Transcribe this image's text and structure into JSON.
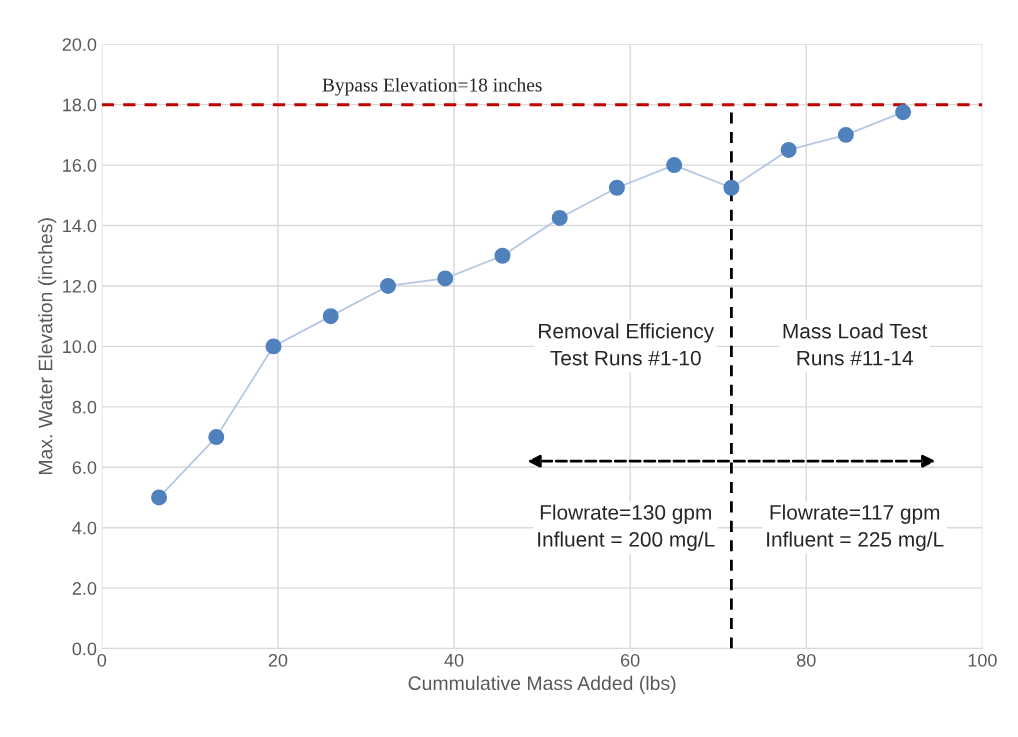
{
  "chart_data": {
    "type": "line",
    "xlabel": "Cummulative Mass Added (lbs)",
    "ylabel": "Max. Water Elevation (inches)",
    "x": [
      6.5,
      13,
      19.5,
      26,
      32.5,
      39,
      45.5,
      52,
      58.5,
      65,
      71.5,
      78,
      84.5,
      91
    ],
    "series": [
      {
        "color": "#4f81bd",
        "values": [
          5,
          7,
          10,
          11,
          12,
          12.25,
          13,
          14.25,
          15.25,
          16,
          15.25,
          16.5,
          17,
          17.75
        ]
      }
    ],
    "marker": "circle",
    "xlim": [
      0,
      100
    ],
    "xticks": [
      0,
      20,
      40,
      60,
      80,
      100
    ],
    "ylim": [
      0,
      20
    ],
    "yticks": [
      {
        "value": 0,
        "label": "0.0"
      },
      {
        "value": 2,
        "label": "2.0"
      },
      {
        "value": 4,
        "label": "4.0"
      },
      {
        "value": 6,
        "label": "6.0"
      },
      {
        "value": 8,
        "label": "8.0"
      },
      {
        "value": 10,
        "label": "10.0"
      },
      {
        "value": 12,
        "label": "12.0"
      },
      {
        "value": 14,
        "label": "14.0"
      },
      {
        "value": 16,
        "label": "16.0"
      },
      {
        "value": 18,
        "label": "18.0"
      },
      {
        "value": 20,
        "label": "20.0"
      }
    ],
    "grid": true,
    "ref_lines": [
      {
        "axis": "y",
        "value": 18,
        "label": "Bypass Elevation=18 inches",
        "color": "#c00000",
        "line_style": "dashed"
      },
      {
        "axis": "x",
        "value": 71.5,
        "label": null,
        "color": "#000000",
        "line_style": "dashed"
      }
    ],
    "annotations": [
      "Removal Efficiency\nTest Runs #1-10",
      "Mass Load Test\nRuns #11-14",
      "Flowrate=130 gpm\nInfluent = 200 mg/L",
      "Flowrate=117 gpm\nInfluent = 225 mg/L"
    ]
  }
}
